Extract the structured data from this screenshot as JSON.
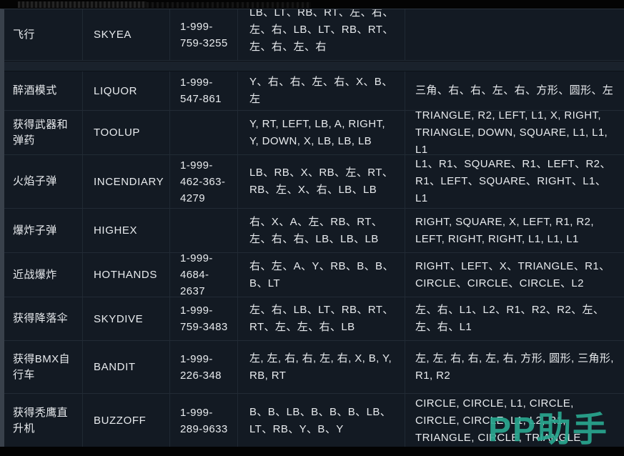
{
  "watermark": {
    "text": "PP助手",
    "color": "#29a68f"
  },
  "colors": {
    "page_background": "#000000",
    "table_background": "#131a23",
    "row_separator": "#222b35",
    "left_border": "#39414b",
    "text": "#e8ebee",
    "watermark": "#29a68f"
  },
  "table": {
    "rows": [
      {
        "name": "飞行",
        "code": "SKYEA",
        "phone": "1-999-759-3255",
        "xbox": "LB、LT、RB、RT、左、右、左、右、LB、LT、RB、RT、左、右、左、右",
        "ps": ""
      },
      {
        "name": "醉酒模式",
        "code": "LIQUOR",
        "phone": "1-999-547-861",
        "xbox": "Y、右、右、左、右、X、B、左",
        "ps": "三角、右、右、左、右、方形、圆形、左"
      },
      {
        "name": "获得武器和弹药",
        "code": "TOOLUP",
        "phone": "",
        "xbox": "Y, RT, LEFT, LB, A, RIGHT, Y, DOWN, X, LB, LB, LB",
        "ps": "TRIANGLE, R2, LEFT, L1, X, RIGHT, TRIANGLE, DOWN, SQUARE, L1, L1, L1"
      },
      {
        "name": "火焰子弹",
        "code": "INCENDIARY",
        "phone": "1-999-462-363-4279",
        "xbox": "LB、RB、X、RB、左、RT、RB、左、X、右、LB、LB",
        "ps": "L1、R1、SQUARE、R1、LEFT、R2、R1、LEFT、SQUARE、RIGHT、L1、L1"
      },
      {
        "name": "爆炸子弹",
        "code": "HIGHEX",
        "phone": "",
        "xbox": "右、X、A、左、RB、RT、左、右、右、LB、LB、LB",
        "ps": "RIGHT, SQUARE, X, LEFT, R1, R2, LEFT, RIGHT, RIGHT, L1, L1, L1"
      },
      {
        "name": "近战爆炸",
        "code": "HOTHANDS",
        "phone": "1-999-4684-2637",
        "xbox": "右、左、A、Y、RB、B、B、B、LT",
        "ps": "RIGHT、LEFT、X、TRIANGLE、R1、CIRCLE、CIRCLE、CIRCLE、L2"
      },
      {
        "name": "获得降落伞",
        "code": "SKYDIVE",
        "phone": "1-999-759-3483",
        "xbox": "左、右、LB、LT、RB、RT、RT、左、左、右、LB",
        "ps": "左、右、L1、L2、R1、R2、R2、左、左、右、L1"
      },
      {
        "name": "获得BMX自行车",
        "code": "BANDIT",
        "phone": "1-999-226-348",
        "xbox": "左, 左, 右, 右, 左, 右, X, B, Y, RB, RT",
        "ps": "左, 左, 右, 右, 左, 右, 方形, 圆形, 三角形, R1, R2"
      },
      {
        "name": "获得秃鹰直升机",
        "code": "BUZZOFF",
        "phone": "1-999-289-9633",
        "xbox": "B、B、LB、B、B、B、LB、LT、RB、Y、B、Y",
        "ps": "CIRCLE, CIRCLE, L1, CIRCLE, CIRCLE, CIRCLE, L1, L2, R1, TRIANGLE, CIRCLE, TRIANGLE"
      }
    ]
  }
}
